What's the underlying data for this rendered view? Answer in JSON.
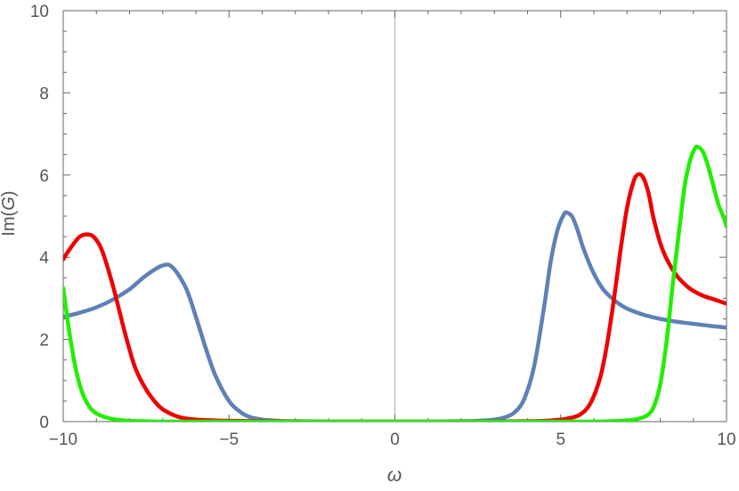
{
  "chart_data": {
    "type": "line",
    "xlabel": "ω",
    "ylabel_prefix": "Im(",
    "ylabel_var": "G",
    "ylabel_suffix": ")",
    "xlim": [
      -10,
      10
    ],
    "ylim": [
      0,
      10
    ],
    "xticks": [
      {
        "value": -10,
        "label": "−10"
      },
      {
        "value": -5,
        "label": "−5"
      },
      {
        "value": 0,
        "label": "0"
      },
      {
        "value": 5,
        "label": "5"
      },
      {
        "value": 10,
        "label": "10"
      }
    ],
    "yticks": [
      {
        "value": 0,
        "label": "0"
      },
      {
        "value": 2,
        "label": "2"
      },
      {
        "value": 4,
        "label": "4"
      },
      {
        "value": 6,
        "label": "6"
      },
      {
        "value": 8,
        "label": "8"
      },
      {
        "value": 10,
        "label": "10"
      }
    ],
    "grid": false,
    "legend": "none",
    "axis_color": "#666666",
    "zero_line_color": "#b0b0b0",
    "series": [
      {
        "color": "#5e81b5",
        "x": [
          -10,
          -9.5,
          -9,
          -8.5,
          -8,
          -7.5,
          -7,
          -6.7,
          -6.3,
          -6,
          -5.7,
          -5.4,
          -5,
          -4.7,
          -4.4,
          -4,
          -3.5,
          -3,
          -2,
          -1,
          0,
          1,
          2,
          2.5,
          3,
          3.3,
          3.6,
          3.9,
          4.2,
          4.5,
          4.7,
          4.9,
          5.1,
          5.2,
          5.35,
          5.5,
          5.7,
          6,
          6.3,
          6.7,
          7,
          7.5,
          8,
          8.5,
          9,
          9.5,
          10
        ],
        "y": [
          2.55,
          2.65,
          2.78,
          2.97,
          3.22,
          3.56,
          3.8,
          3.75,
          3.25,
          2.55,
          1.78,
          1.1,
          0.5,
          0.26,
          0.12,
          0.05,
          0.02,
          0.01,
          0,
          0,
          0,
          0,
          0.01,
          0.02,
          0.05,
          0.1,
          0.22,
          0.55,
          1.35,
          2.8,
          3.9,
          4.65,
          5.05,
          5.08,
          4.98,
          4.68,
          4.18,
          3.6,
          3.2,
          2.9,
          2.75,
          2.6,
          2.5,
          2.43,
          2.38,
          2.33,
          2.29
        ]
      },
      {
        "color": "#ee0000",
        "x": [
          -10,
          -9.8,
          -9.5,
          -9.2,
          -9,
          -8.8,
          -8.5,
          -8.2,
          -8,
          -7.8,
          -7.5,
          -7.2,
          -7,
          -6.7,
          -6.4,
          -6,
          -5.5,
          -5,
          -4,
          -2,
          0,
          2,
          4,
          4.5,
          5,
          5.3,
          5.6,
          5.9,
          6.2,
          6.4,
          6.6,
          6.8,
          7,
          7.2,
          7.35,
          7.5,
          7.65,
          7.8,
          8,
          8.2,
          8.5,
          8.8,
          9,
          9.3,
          9.6,
          10
        ],
        "y": [
          3.95,
          4.2,
          4.5,
          4.55,
          4.42,
          4.1,
          3.3,
          2.35,
          1.75,
          1.25,
          0.78,
          0.45,
          0.3,
          0.17,
          0.09,
          0.05,
          0.03,
          0.02,
          0.01,
          0,
          0,
          0,
          0.01,
          0.02,
          0.05,
          0.09,
          0.18,
          0.45,
          1.1,
          1.9,
          2.95,
          4.15,
          5.2,
          5.85,
          6.02,
          5.92,
          5.55,
          4.95,
          4.35,
          3.95,
          3.55,
          3.3,
          3.18,
          3.06,
          2.98,
          2.87
        ]
      },
      {
        "color": "#22ee00",
        "x": [
          -10,
          -9.8,
          -9.6,
          -9.4,
          -9.2,
          -9,
          -8.7,
          -8.4,
          -8,
          -7.5,
          -7,
          -6,
          -4,
          -2,
          0,
          2,
          4,
          5,
          6,
          6.5,
          7,
          7.3,
          7.6,
          7.8,
          8,
          8.2,
          8.4,
          8.6,
          8.75,
          8.9,
          9.05,
          9.15,
          9.3,
          9.45,
          9.6,
          9.75,
          9.9,
          10
        ],
        "y": [
          3.25,
          2.1,
          1.2,
          0.65,
          0.35,
          0.2,
          0.1,
          0.05,
          0.02,
          0.01,
          0,
          0,
          0,
          0,
          0,
          0,
          0,
          0,
          0,
          0.01,
          0.03,
          0.06,
          0.15,
          0.35,
          0.9,
          2.0,
          3.5,
          4.85,
          5.8,
          6.35,
          6.65,
          6.68,
          6.55,
          6.2,
          5.75,
          5.3,
          5.0,
          4.75
        ]
      }
    ]
  }
}
